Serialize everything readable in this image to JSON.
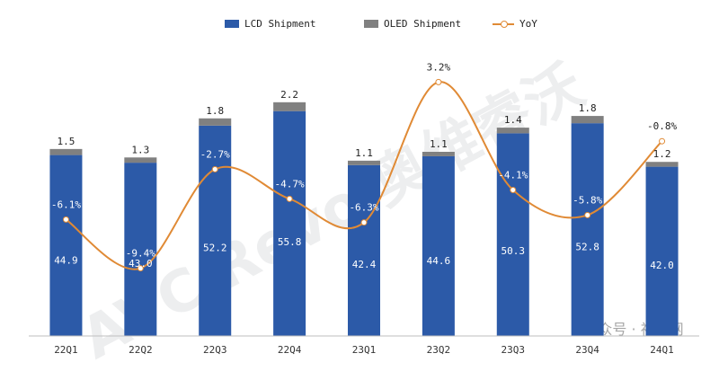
{
  "chart_data": {
    "type": "bar",
    "stacked": true,
    "categories": [
      "22Q1",
      "22Q2",
      "22Q3",
      "22Q4",
      "23Q1",
      "23Q2",
      "23Q3",
      "23Q4",
      "24Q1"
    ],
    "series": [
      {
        "name": "LCD Shipment",
        "type": "bar",
        "color": "#2c5aa8",
        "values": [
          44.9,
          43.0,
          52.2,
          55.8,
          42.4,
          44.6,
          50.3,
          52.8,
          42.0
        ]
      },
      {
        "name": "OLED Shipment",
        "type": "bar",
        "color": "#808080",
        "values": [
          1.5,
          1.3,
          1.8,
          2.2,
          1.1,
          1.1,
          1.4,
          1.8,
          1.2
        ]
      },
      {
        "name": "YoY",
        "type": "line",
        "color": "#e08a35",
        "values": [
          -6.1,
          -9.4,
          -2.7,
          -4.7,
          -6.3,
          3.2,
          -4.1,
          -5.8,
          -0.8
        ],
        "labels": [
          "-6.1%",
          "-9.4%",
          "-2.7%",
          "-4.7%",
          "-6.3%",
          "3.2%",
          "-4.1%",
          "-5.8%",
          "-0.8%"
        ]
      }
    ],
    "ylim": [
      0,
      70
    ],
    "y2lim": [
      -11.0,
      4.5
    ],
    "legend": "top-center",
    "grid": false,
    "watermark": "AVC Revo 奥维睿沃",
    "footer_watermark": "公众号 · 视听网"
  }
}
